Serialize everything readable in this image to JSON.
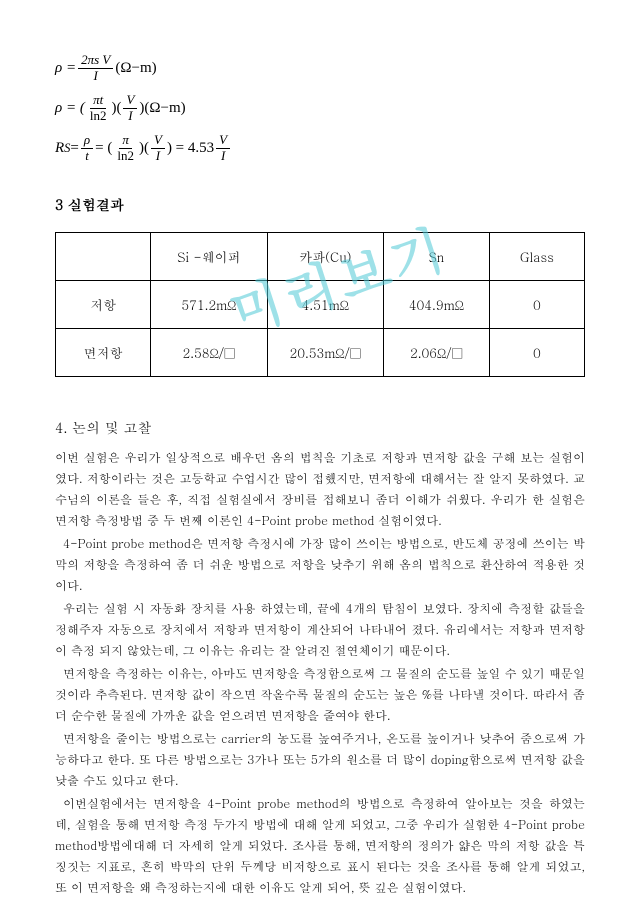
{
  "formulas": {
    "f1_lhs": "ρ =",
    "f1_num": "2πs V",
    "f1_den": "I",
    "f1_tail": "(Ω−m)",
    "f2_lhs": "ρ = (",
    "f2_num1": "πt",
    "f2_den1": "ln2",
    "f2_mid": ")(",
    "f2_num2": "V",
    "f2_den2": "I",
    "f2_tail": ")(Ω−m)",
    "f3_lhs": "R",
    "f3_sub": "S",
    "f3_eq": " = ",
    "f3_num1": "ρ",
    "f3_den1": "t",
    "f3_mid1": " = (",
    "f3_num2": "π",
    "f3_den2": "ln2",
    "f3_mid2": ")(",
    "f3_num3": "V",
    "f3_den3": "I",
    "f3_mid3": ") = 4.53",
    "f3_num4": "V",
    "f3_den4": "I"
  },
  "section3_title": "3 실험결과",
  "table": {
    "headers": [
      "",
      "Si  -웨이퍼",
      "카파(Cu)",
      "Sn",
      "Glass"
    ],
    "rows": [
      [
        "저항",
        "571.2mΩ",
        "4.51mΩ",
        "404.9mΩ",
        "0"
      ],
      [
        "면저항",
        "2.58Ω/□",
        "20.53mΩ/□",
        "2.06Ω/□",
        "0"
      ]
    ],
    "col_widths": [
      "18%",
      "22%",
      "22%",
      "20%",
      "18%"
    ]
  },
  "section4_title": "4. 논의 및 고찰",
  "paragraphs": [
    "이번 실험은 우리가 일상적으로 배우던 옴의 법칙을 기초로 저항과 면저항 값을 구해 보는 실험이였다. 저항이라는 것은 고등학교 수업시간 많이 접했지만, 면저항에 대해서는 잘 알지 못하였다. 교수님의 이론을 들은 후, 직접 실험실에서 장비를 접해보니 좀더 이해가 쉬웠다. 우리가 한 실험은 면저항 측정방법 중 두 번째 이론인 4-Point probe method 실험이였다.",
    "4-Point probe method은 면저항 측정시에 가장 많이 쓰이는 방법으로, 반도체 공정에 쓰이는 박막의 저항을 측정하여 좀 더 쉬운 방법으로 저항을 낮추기 위해 옴의 법칙으로 환산하여 적용한 것이다.",
    "우리는 실험 시 자동화 장치를 사용 하였는데, 끝에 4개의 탐침이 보였다. 장치에 측정할 값들을 정해주자 자동으로 장치에서 저항과 면저항이 계산되어 나타내어 졌다. 유리에서는 저항과 면저항이 측정 되지 않았는데, 그 이유는   유리는 잘 알려진 절연체이기 때문이다.",
    "면저항을 측정하는 이유는, 아마도 면저항을 측정함으로써 그 물질의 순도를 높일 수 있기 때문일 것이라 추측된다. 면저항 값이 작으면 작올수록 물질의 순도는 높은 %를 나타낼 것이다. 따라서 좀 더 순수한 물질에 가까운 값을 얻으려면 면저항을 줄여야 한다.",
    "면저항을 줄이는 방법으로는 carrier의 농도를 높여주거나, 온도를 높이거나 낮추어 줌으로써 가능하다고 한다. 또 다른 방법으로는 3가나 또는 5가의 원소를 더 많이 doping함으로써 면저항 값을 낮출 수도 있다고 한다.",
    "이번실험에서는 면저항을 4-Point probe method의 방법으로 측정하여 알아보는 것을 하였는 데, 실험을 통해 면저항 측정 두가지 방법에 대해 알게 되었고, 그중 우리가 실험한 4-Point probe method방법에대해 더 자세히 알게 되었다. 조사를 통해, 면저항의 정의가 얇은 막의 저항 값을 특징짓는 지표로, 흔히 박막의 단위 두께당 비저항으로 표시 된다는 것을 조사를 통해 알게 되었고, 또 이 면저항을 왜 측정하는지에 대한 이유도 알게 되어, 뜻 깊은 실험이였다."
  ],
  "watermark": "미리보기",
  "colors": {
    "text": "#000000",
    "border": "#000000",
    "watermark": "#4fc9d6",
    "background": "#ffffff"
  }
}
